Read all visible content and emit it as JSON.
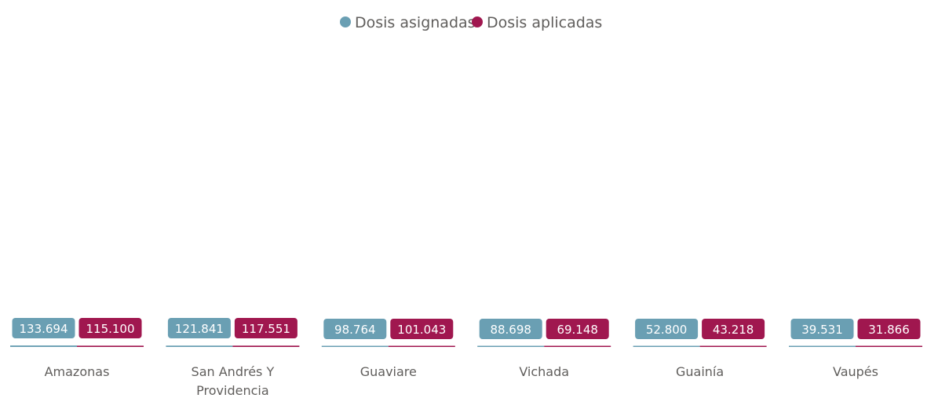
{
  "chart_data": {
    "type": "bar",
    "title": "",
    "xlabel": "",
    "ylabel": "",
    "legend_position": "top-center",
    "grid": false,
    "categories": [
      "Amazonas",
      "San Andrés Y Providencia",
      "Guaviare",
      "Vichada",
      "Guainía",
      "Vaupés"
    ],
    "category_lines": [
      [
        "Amazonas"
      ],
      [
        "San Andrés Y",
        "Providencia"
      ],
      [
        "Guaviare"
      ],
      [
        "Vichada"
      ],
      [
        "Guainía"
      ],
      [
        "Vaupés"
      ]
    ],
    "series": [
      {
        "name": "Dosis asignadas",
        "color": "#6a9fb3",
        "values": [
          133694,
          121841,
          98764,
          88698,
          52800,
          39531
        ],
        "labels": [
          "133.694",
          "121.841",
          "98.764",
          "88.698",
          "52.800",
          "39.531"
        ]
      },
      {
        "name": "Dosis aplicadas",
        "color": "#a0174f",
        "values": [
          115100,
          117551,
          101043,
          69148,
          43218,
          31866
        ],
        "labels": [
          "115.100",
          "117.551",
          "101.043",
          "69.148",
          "43.218",
          "31.866"
        ]
      }
    ]
  }
}
